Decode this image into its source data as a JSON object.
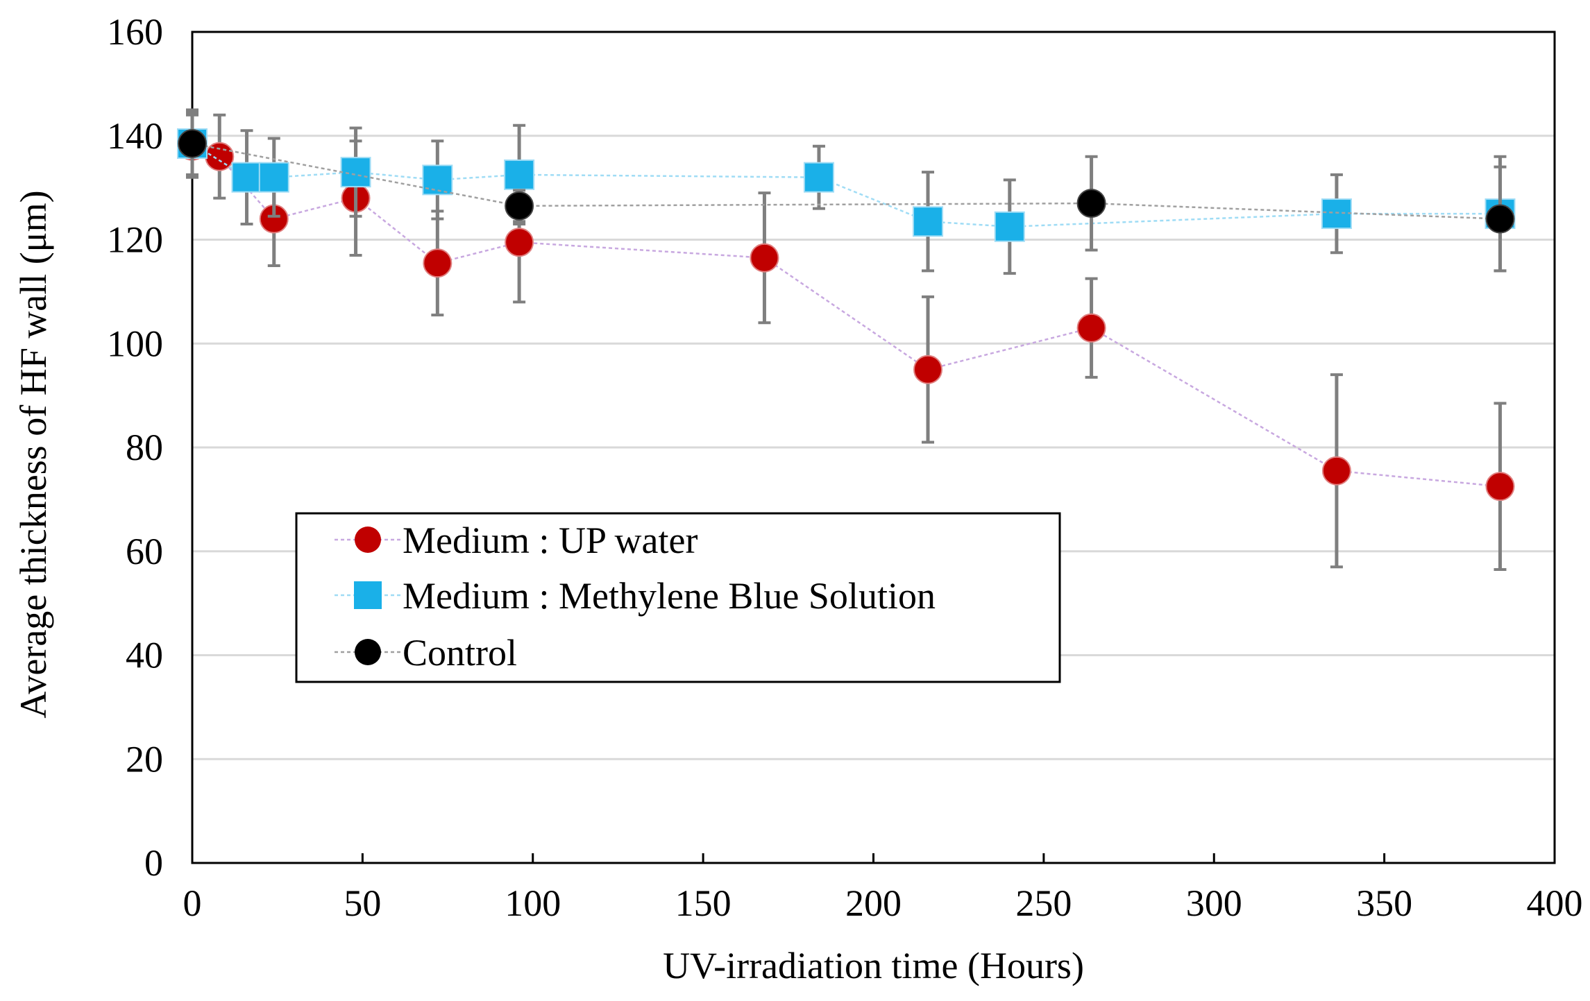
{
  "chart_data": {
    "type": "scatter",
    "title": "",
    "xlabel": "UV-irradiation time (Hours)",
    "ylabel": "Average thickness of HF wall (μm)",
    "xlim": [
      0,
      400
    ],
    "ylim": [
      0,
      160
    ],
    "x_ticks": [
      "0",
      "50",
      "100",
      "150",
      "200",
      "250",
      "300",
      "350",
      "400"
    ],
    "y_ticks": [
      "0",
      "20",
      "40",
      "60",
      "80",
      "100",
      "120",
      "140",
      "160"
    ],
    "grid": "horizontal",
    "legend_position": "lower-left",
    "series": [
      {
        "name": "Medium : UP water",
        "marker": "circle",
        "color": "#c00000",
        "line_color": "#c8a8e0",
        "points": [
          {
            "x": 0,
            "y": 138,
            "err": 6
          },
          {
            "x": 8,
            "y": 136,
            "err": 8
          },
          {
            "x": 24,
            "y": 124,
            "err": 9
          },
          {
            "x": 48,
            "y": 128,
            "err": 11
          },
          {
            "x": 72,
            "y": 115.5,
            "err": 10
          },
          {
            "x": 96,
            "y": 119.5,
            "err": 11.5
          },
          {
            "x": 168,
            "y": 116.5,
            "err": 12.5
          },
          {
            "x": 216,
            "y": 95,
            "err": 14
          },
          {
            "x": 264,
            "y": 103,
            "err": 9.5
          },
          {
            "x": 336,
            "y": 75.5,
            "err": 18.5
          },
          {
            "x": 384,
            "y": 72.5,
            "err": 16
          }
        ]
      },
      {
        "name": "Medium : Methylene Blue Solution",
        "marker": "square",
        "color": "#1ab0e8",
        "line_color": "#9fdcf5",
        "points": [
          {
            "x": 0,
            "y": 138.5,
            "err": 6
          },
          {
            "x": 16,
            "y": 132,
            "err": 9
          },
          {
            "x": 24,
            "y": 132,
            "err": 7.5
          },
          {
            "x": 48,
            "y": 133,
            "err": 8.5
          },
          {
            "x": 72,
            "y": 131.5,
            "err": 7.5
          },
          {
            "x": 96,
            "y": 132.5,
            "err": 9.5
          },
          {
            "x": 184,
            "y": 132,
            "err": 6
          },
          {
            "x": 216,
            "y": 123.5,
            "err": 9.5
          },
          {
            "x": 240,
            "y": 122.5,
            "err": 9
          },
          {
            "x": 336,
            "y": 125,
            "err": 7.5
          },
          {
            "x": 384,
            "y": 125,
            "err": 11
          }
        ]
      },
      {
        "name": "Control",
        "marker": "circle",
        "color": "#000000",
        "line_color": "#a0a0a0",
        "points": [
          {
            "x": 0,
            "y": 138.5,
            "err": 6.5
          },
          {
            "x": 96,
            "y": 126.5,
            "err": 3
          },
          {
            "x": 264,
            "y": 127,
            "err": 9
          },
          {
            "x": 384,
            "y": 124,
            "err": 10
          }
        ]
      }
    ]
  }
}
